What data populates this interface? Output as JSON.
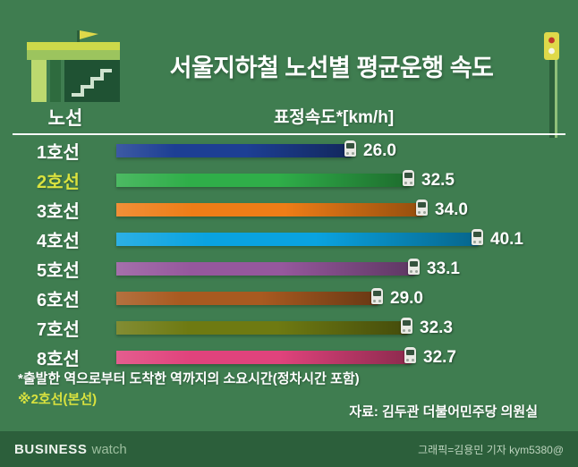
{
  "title": "서울지하철 노선별 평균운행 속도",
  "table_headers": {
    "line": "노선",
    "speed": "표정속도*[km/h]"
  },
  "chart_data": {
    "type": "bar",
    "orientation": "horizontal",
    "title": "서울지하철 노선별 평균운행 속도",
    "xlabel": "표정속도*[km/h]",
    "xlim": [
      0,
      42
    ],
    "categories": [
      "1호선",
      "2호선",
      "3호선",
      "4호선",
      "5호선",
      "6호선",
      "7호선",
      "8호선"
    ],
    "values": [
      26.0,
      32.5,
      34.0,
      40.1,
      33.1,
      29.0,
      32.3,
      32.7
    ],
    "value_labels": [
      "26.0",
      "32.5",
      "34.0",
      "40.1",
      "33.1",
      "29.0",
      "32.3",
      "32.7"
    ],
    "bar_colors": [
      "#1d3f94",
      "#2fae49",
      "#ee7d17",
      "#0aa3e0",
      "#96589d",
      "#a85a20",
      "#6e7a12",
      "#e0437c"
    ],
    "highlight_category": "2호선",
    "grid": false,
    "legend_position": "none"
  },
  "footnote": "*출발한 역으로부터 도착한 역까지의 소요시간(정차시간 포함)",
  "footnote_highlight": "※2호선(본선)",
  "source": "자료: 김두관 더불어민주당 의원실",
  "footer": {
    "logo_primary": "BUSINESS",
    "logo_secondary": "watch",
    "credit": "그래픽=김용민 기자 kym5380@"
  },
  "colors": {
    "background": "#3f7d50",
    "footer_background": "#2c5f3b",
    "highlight_text": "#d9e23f",
    "accent_yellow": "#dfd94a",
    "text": "#ffffff"
  }
}
